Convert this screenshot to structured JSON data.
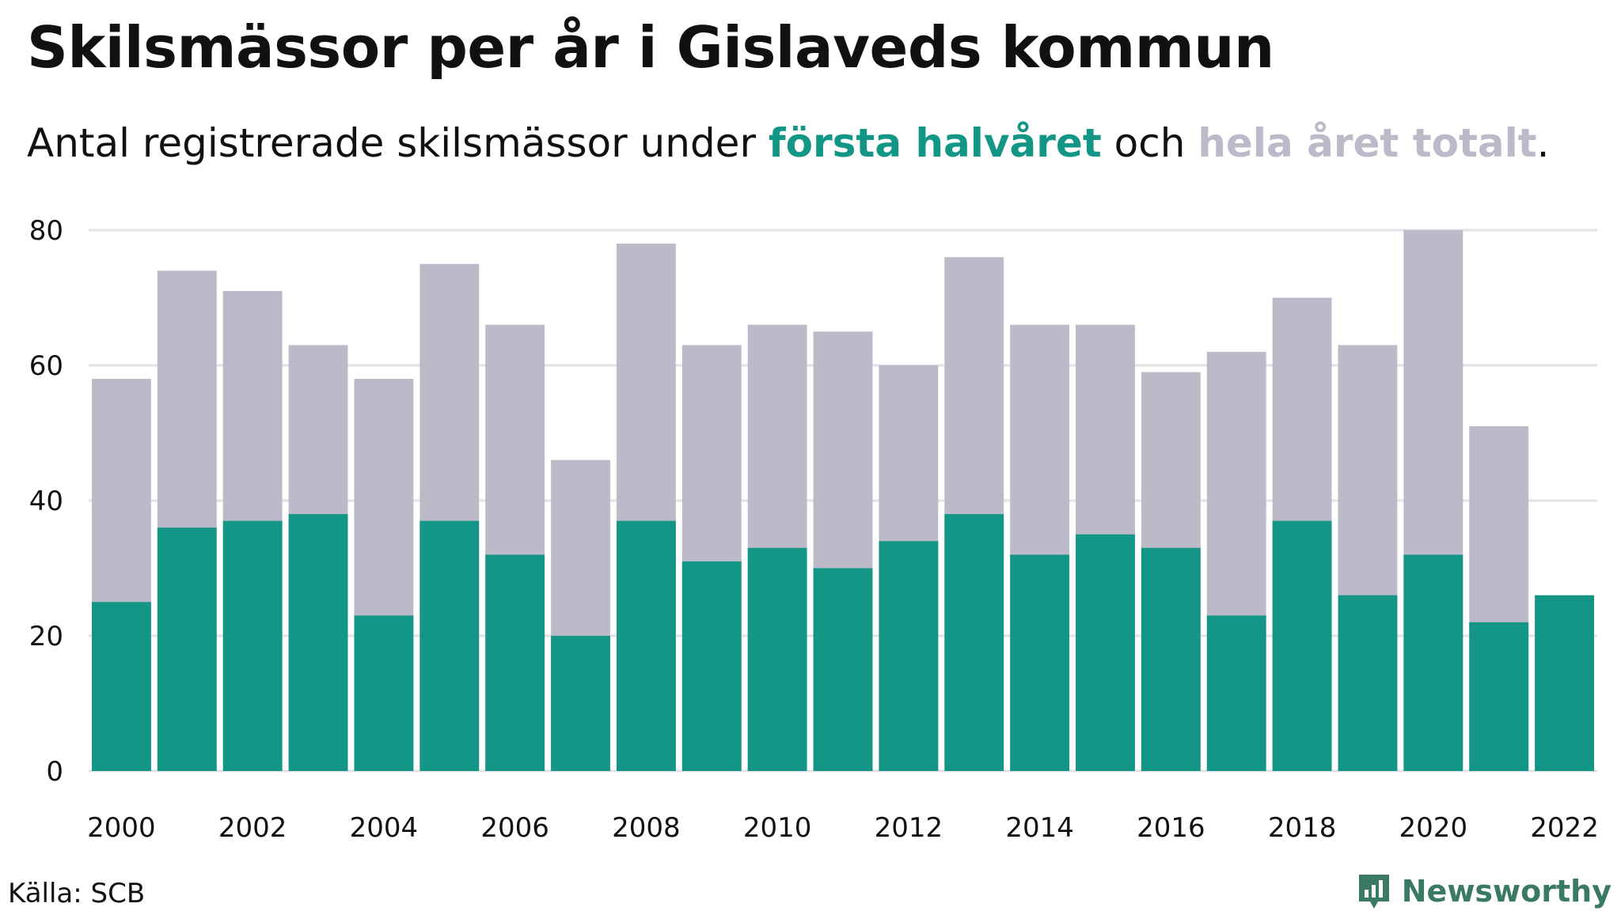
{
  "header": {
    "title": "Skilsmässor per år i Gislaveds kommun",
    "subtitle_prefix": "Antal registrerade skilsmässor under ",
    "subtitle_first": "första halvåret",
    "subtitle_mid": " och ",
    "subtitle_total": "hela året totalt",
    "subtitle_suffix": "."
  },
  "footer": {
    "source": "Källa: SCB",
    "brand": "Newsworthy"
  },
  "colors": {
    "first_half": "#149687",
    "full_year": "#bcbac9",
    "grid": "#e2e1e6",
    "brand": "#3a7a62"
  },
  "icons": {
    "brand_logo": "newsworthy-logo-icon"
  },
  "chart_data": {
    "type": "bar",
    "stacking": "overlay",
    "categories": [
      "2000",
      "2001",
      "2002",
      "2003",
      "2004",
      "2005",
      "2006",
      "2007",
      "2008",
      "2009",
      "2010",
      "2011",
      "2012",
      "2013",
      "2014",
      "2015",
      "2016",
      "2017",
      "2018",
      "2019",
      "2020",
      "2021",
      "2022"
    ],
    "x_tick_labels": [
      "2000",
      "2002",
      "2004",
      "2006",
      "2008",
      "2010",
      "2012",
      "2014",
      "2016",
      "2018",
      "2020",
      "2022"
    ],
    "series": [
      {
        "name": "hela året totalt",
        "values": [
          58,
          74,
          71,
          63,
          58,
          75,
          66,
          46,
          78,
          63,
          66,
          65,
          60,
          76,
          66,
          66,
          59,
          62,
          70,
          63,
          80,
          51,
          null
        ]
      },
      {
        "name": "första halvåret",
        "values": [
          25,
          36,
          37,
          38,
          23,
          37,
          32,
          20,
          37,
          31,
          33,
          30,
          34,
          38,
          32,
          35,
          33,
          23,
          37,
          26,
          32,
          22,
          26
        ]
      }
    ],
    "ylim": [
      0,
      80
    ],
    "y_ticks": [
      0,
      20,
      40,
      60,
      80
    ],
    "grid": true
  }
}
